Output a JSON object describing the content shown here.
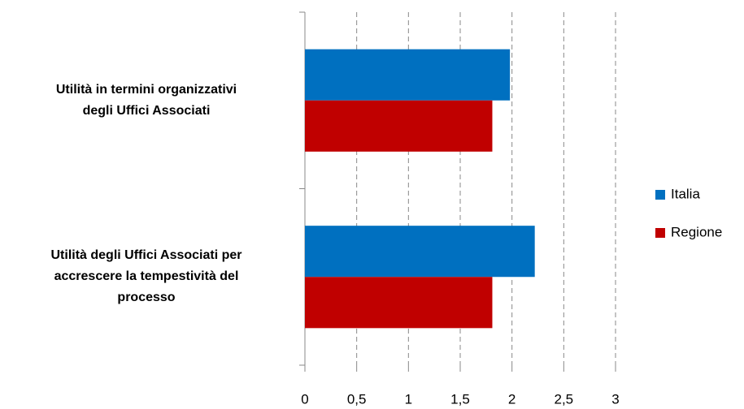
{
  "chart_data": {
    "type": "bar",
    "orientation": "horizontal",
    "categories": [
      "Utilità in termini organizzativi\ndegli Uffici Associati",
      "Utilità degli Uffici Associati  per\naccrescere la tempestività del\nprocesso"
    ],
    "series": [
      {
        "name": "Italia",
        "color": "#0070c0",
        "values": [
          1.98,
          2.22
        ]
      },
      {
        "name": "Regione",
        "color": "#c00000",
        "values": [
          1.81,
          1.81
        ]
      }
    ],
    "xlim": [
      0,
      3
    ],
    "xticks": [
      0,
      {
        "value": 0.5,
        "label": "0,5"
      },
      1,
      {
        "value": 1.5,
        "label": "1,5"
      },
      2,
      {
        "value": 2.5,
        "label": "2,5"
      },
      3
    ],
    "grid": true,
    "legend": "right"
  }
}
